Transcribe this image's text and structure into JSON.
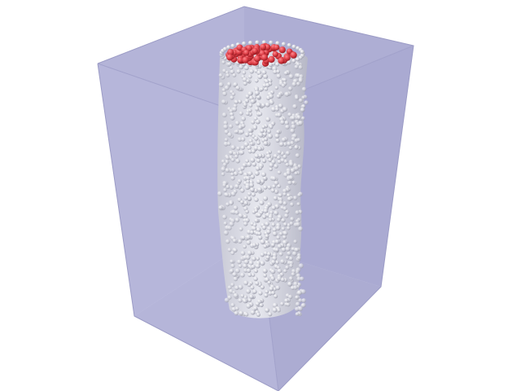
{
  "scene": {
    "subject": "granular-column-in-transparent-box",
    "colors": {
      "background": "#ffffff",
      "box_face_light": "#b9b9dc",
      "box_face_dark": "#a9a9cf",
      "box_edge": "#9a9ac4",
      "particle_gray": "#d9dae3",
      "particle_gray_shadow": "#a8a9b6",
      "particle_red": "#e0424a",
      "particle_red_shadow": "#a81e27"
    }
  }
}
